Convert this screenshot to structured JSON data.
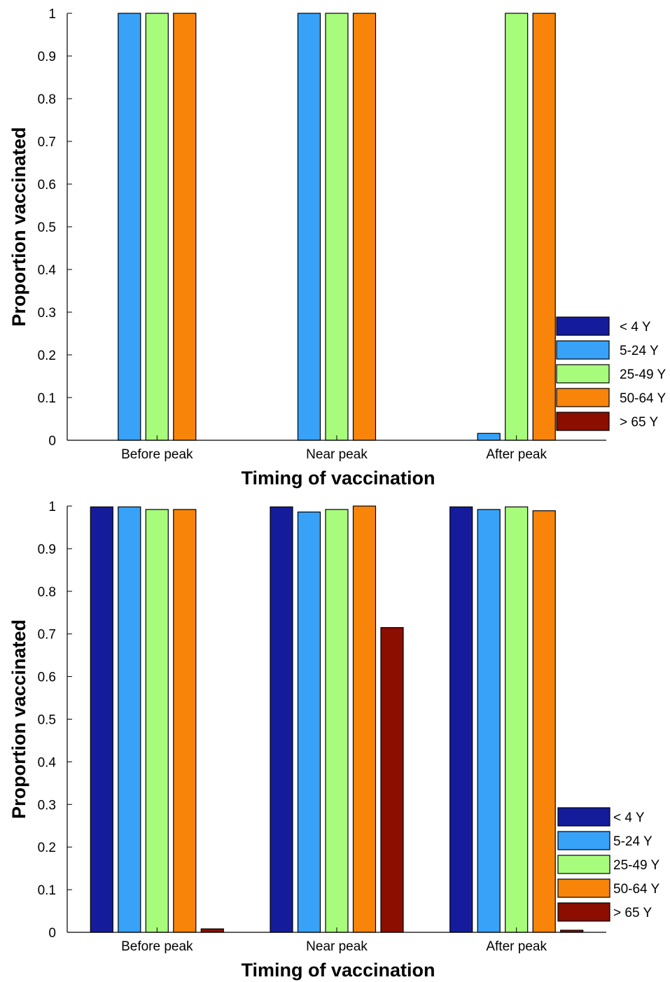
{
  "chart_data": [
    {
      "type": "bar",
      "title": "",
      "xlabel": "Timing of vaccination",
      "ylabel": "Proportion vaccinated",
      "categories": [
        "Before peak",
        "Near peak",
        "After peak"
      ],
      "ylim": [
        0,
        1
      ],
      "yticks": [
        "0",
        "0.1",
        "0.2",
        "0.3",
        "0.4",
        "0.5",
        "0.6",
        "0.7",
        "0.8",
        "0.9",
        "1"
      ],
      "grid": false,
      "legend_position": "bottom-right",
      "series": [
        {
          "name": "< 4 Y",
          "color": "#141c9c",
          "values": [
            0,
            0,
            0
          ]
        },
        {
          "name": "5-24 Y",
          "color": "#38a2f8",
          "values": [
            1.0,
            1.0,
            0.016
          ]
        },
        {
          "name": "25-49 Y",
          "color": "#a8fc7c",
          "values": [
            1.0,
            1.0,
            1.0
          ]
        },
        {
          "name": "50-64 Y",
          "color": "#f8840a",
          "values": [
            1.0,
            1.0,
            1.0
          ]
        },
        {
          "name": "> 65 Y",
          "color": "#8c0e00",
          "values": [
            0,
            0,
            0
          ]
        }
      ]
    },
    {
      "type": "bar",
      "title": "",
      "xlabel": "Timing of vaccination",
      "ylabel": "Proportion vaccinated",
      "categories": [
        "Before peak",
        "Near peak",
        "After peak"
      ],
      "ylim": [
        0,
        1
      ],
      "yticks": [
        "0",
        "0.1",
        "0.2",
        "0.3",
        "0.4",
        "0.5",
        "0.6",
        "0.7",
        "0.8",
        "0.9",
        "1"
      ],
      "grid": false,
      "legend_position": "bottom-right",
      "series": [
        {
          "name": "< 4 Y",
          "color": "#141c9c",
          "values": [
            0.998,
            0.998,
            0.998
          ]
        },
        {
          "name": "5-24 Y",
          "color": "#38a2f8",
          "values": [
            0.998,
            0.986,
            0.992
          ]
        },
        {
          "name": "25-49 Y",
          "color": "#a8fc7c",
          "values": [
            0.992,
            0.992,
            0.998
          ]
        },
        {
          "name": "50-64 Y",
          "color": "#f8840a",
          "values": [
            0.992,
            1.0,
            0.989
          ]
        },
        {
          "name": "> 65 Y",
          "color": "#8c0e00",
          "values": [
            0.008,
            0.715,
            0.005
          ]
        }
      ]
    }
  ]
}
